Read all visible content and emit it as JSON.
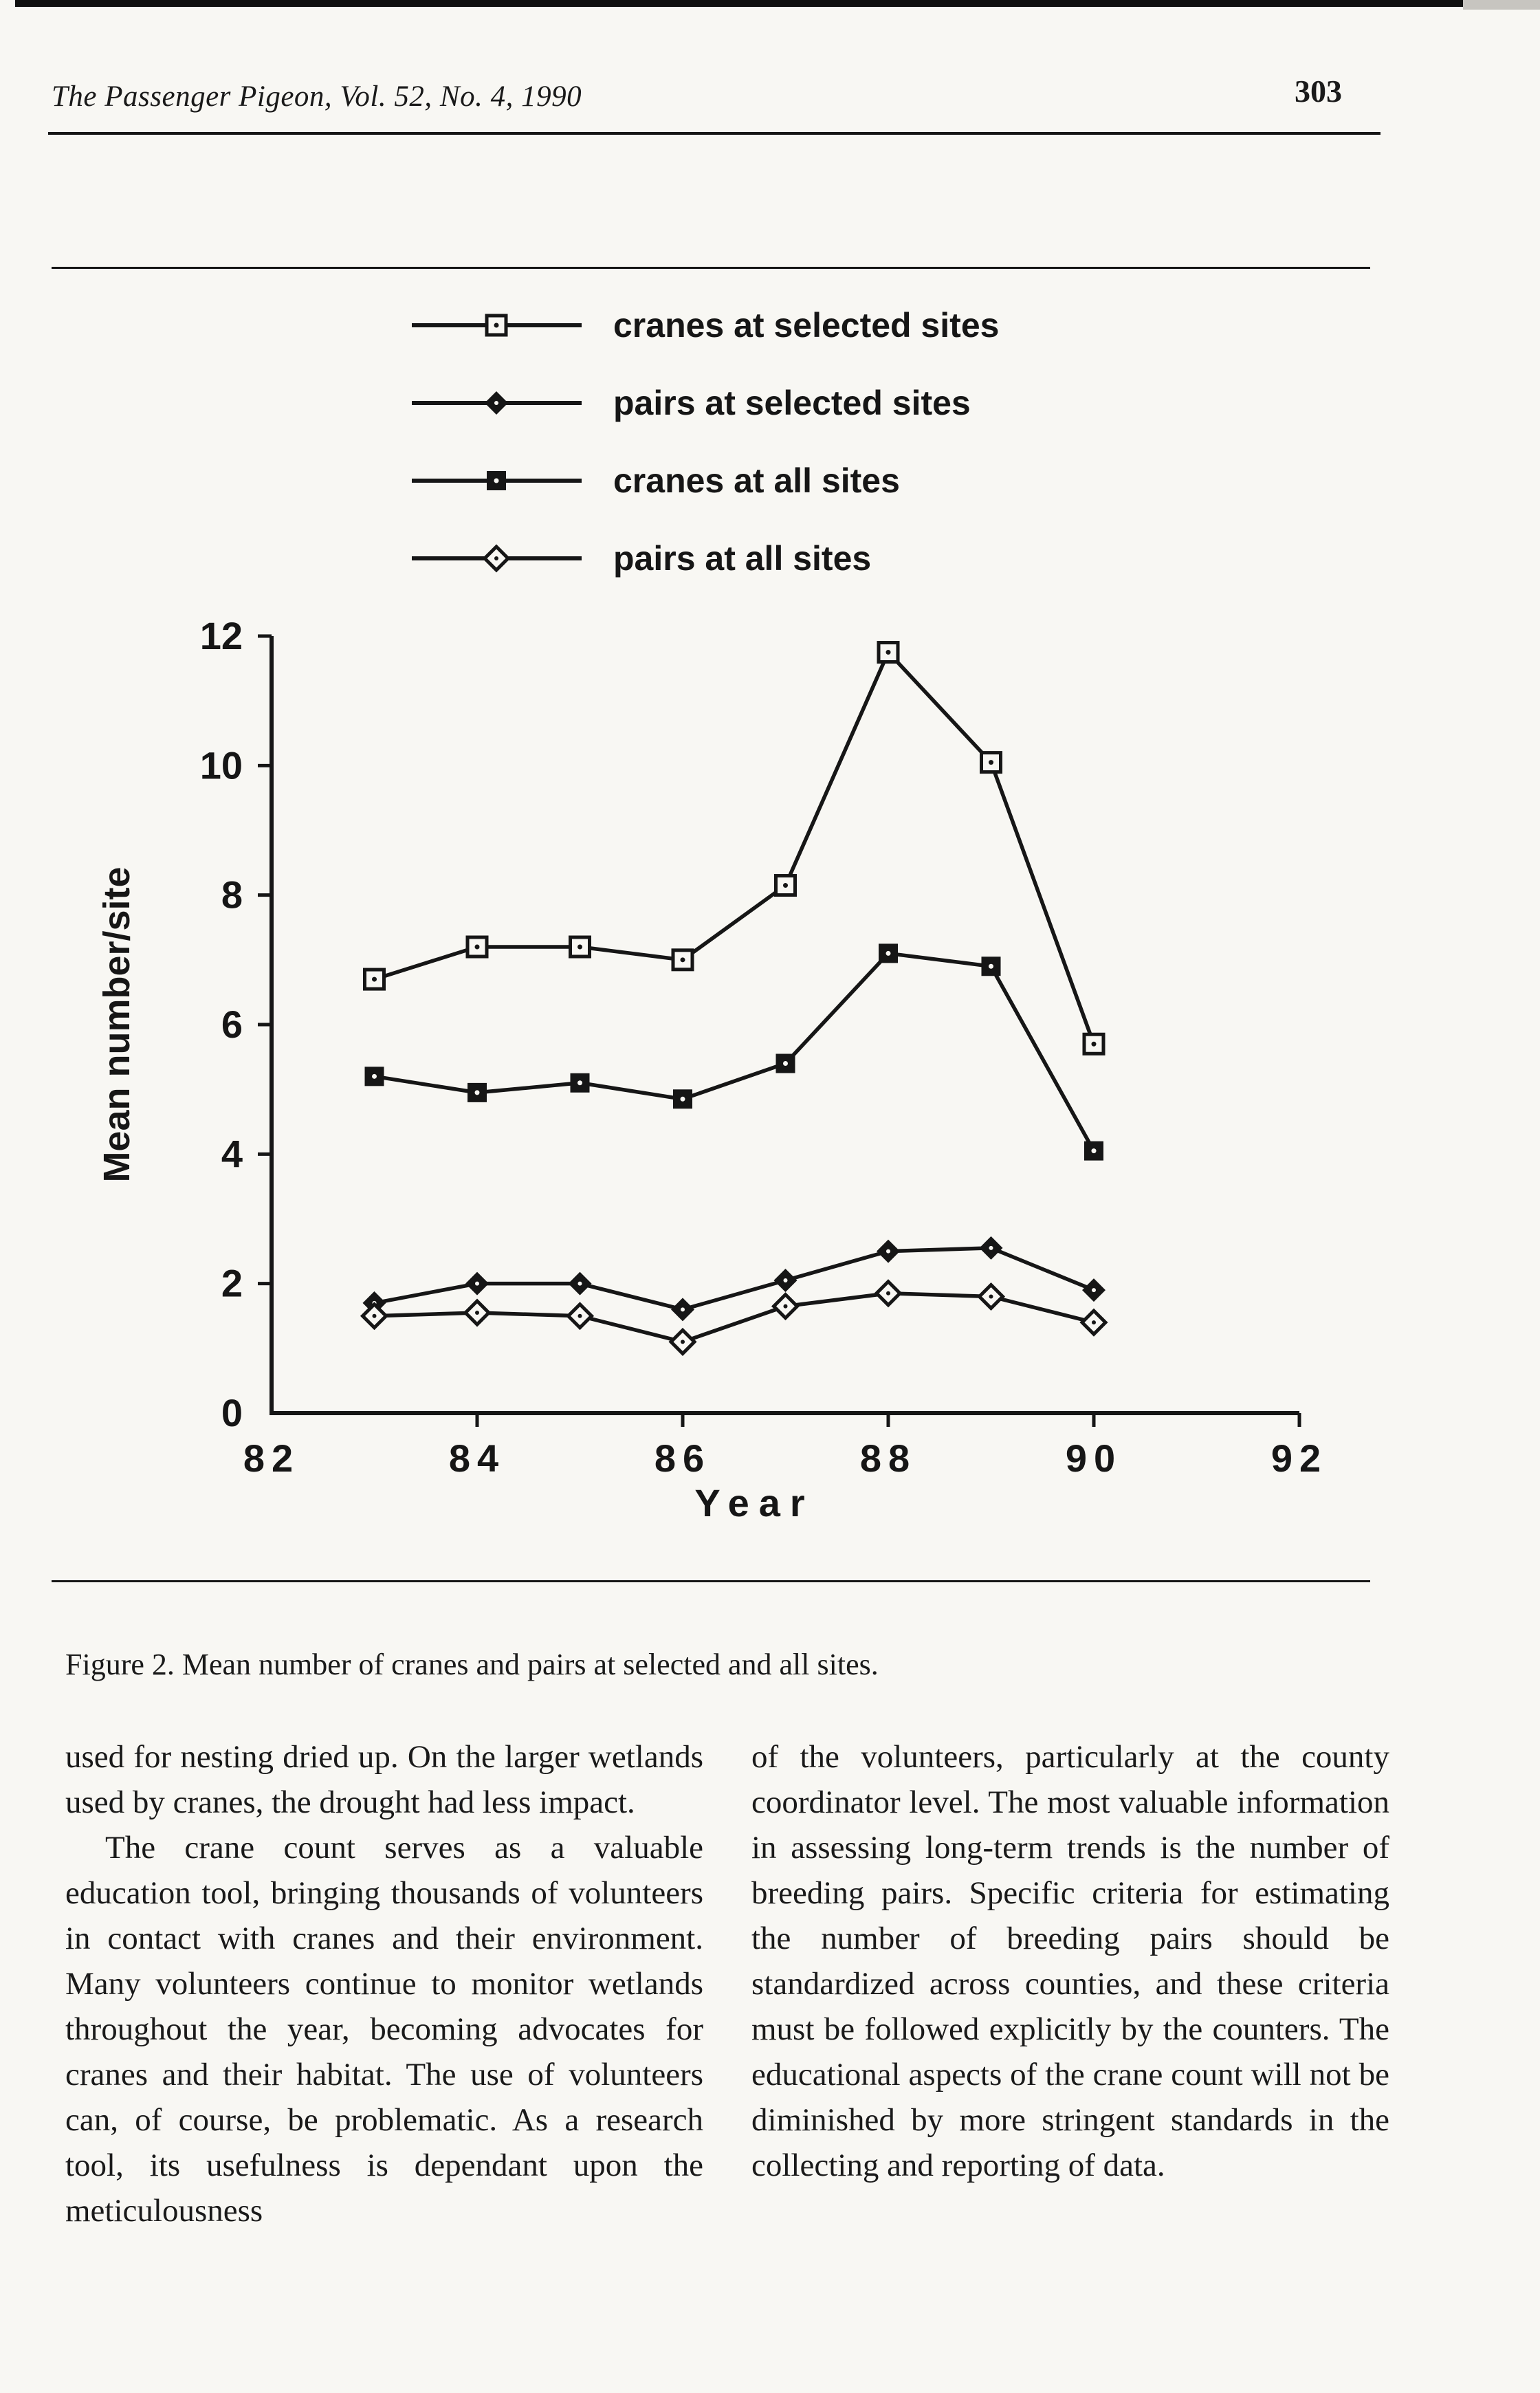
{
  "page": {
    "header": {
      "journal": "The Passenger Pigeon, Vol. 52, No. 4, 1990",
      "page_number": "303"
    },
    "caption": "Figure 2. Mean number of cranes and pairs at selected and all sites.",
    "body": {
      "left_column": [
        "used for nesting dried up. On the larger wetlands used by cranes, the drought had less impact.",
        "The crane count serves as a valuable education tool, bringing thousands of volunteers in contact with cranes and their environment. Many volunteers continue to monitor wetlands throughout the year, becoming advocates for cranes and their habitat. The use of volunteers can, of course, be problematic. As a research tool, its usefulness is dependant upon the meticulousness"
      ],
      "right_column": [
        "of the volunteers, particularly at the county coordinator level. The most valuable information in assessing long-term trends is the number of breeding pairs. Specific criteria for estimating the number of breeding pairs should be standardized across counties, and these criteria must be followed explicitly by the counters. The educational aspects of the crane count will not be diminished by more stringent standards in the collecting and reporting of data."
      ]
    }
  },
  "chart_data": {
    "type": "line",
    "title": "",
    "xlabel": "Year",
    "ylabel": "Mean number/site",
    "xlim": [
      82,
      92
    ],
    "ylim": [
      0,
      12
    ],
    "xticks": [
      82,
      84,
      86,
      88,
      90,
      92
    ],
    "yticks": [
      0,
      2,
      4,
      6,
      8,
      10,
      12
    ],
    "grid": false,
    "legend_position": "top",
    "line_color": "#161616",
    "x": [
      83,
      84,
      85,
      86,
      87,
      88,
      89,
      90
    ],
    "series": [
      {
        "name": "cranes at selected sites",
        "marker": "open-square",
        "values": [
          6.7,
          7.2,
          7.2,
          7.0,
          8.15,
          11.75,
          10.05,
          5.7
        ]
      },
      {
        "name": "pairs at selected sites",
        "marker": "filled-diamond",
        "values": [
          1.7,
          2.0,
          2.0,
          1.6,
          2.05,
          2.5,
          2.55,
          1.9
        ]
      },
      {
        "name": "cranes at all sites",
        "marker": "filled-square",
        "values": [
          5.2,
          4.95,
          5.1,
          4.85,
          5.4,
          7.1,
          6.9,
          4.05
        ]
      },
      {
        "name": "pairs at all sites",
        "marker": "open-diamond",
        "values": [
          1.5,
          1.55,
          1.5,
          1.1,
          1.65,
          1.85,
          1.8,
          1.4
        ]
      }
    ]
  }
}
